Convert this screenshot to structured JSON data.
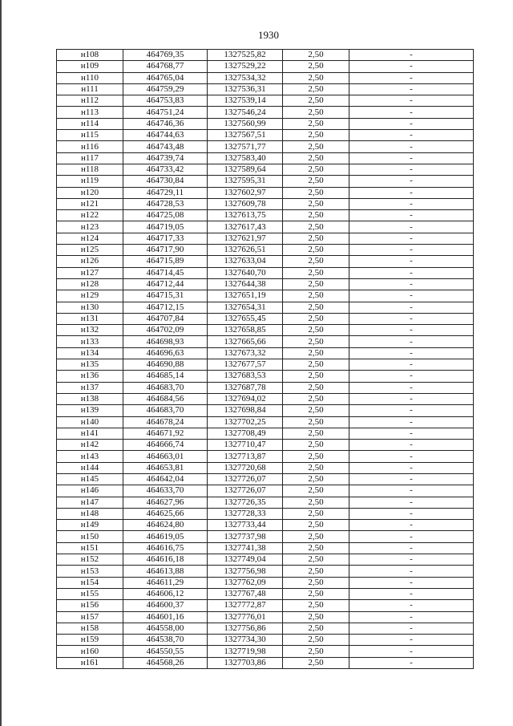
{
  "page_number": "1930",
  "rows": [
    [
      "н108",
      "464769,35",
      "1327525,82",
      "2,50",
      "-"
    ],
    [
      "н109",
      "464768,77",
      "1327529,22",
      "2,50",
      "-"
    ],
    [
      "н110",
      "464765,04",
      "1327534,32",
      "2,50",
      "-"
    ],
    [
      "н111",
      "464759,29",
      "1327536,31",
      "2,50",
      "-"
    ],
    [
      "н112",
      "464753,83",
      "1327539,14",
      "2,50",
      "-"
    ],
    [
      "н113",
      "464751,24",
      "1327546,24",
      "2,50",
      "-"
    ],
    [
      "н114",
      "464746,36",
      "1327560,99",
      "2,50",
      "-"
    ],
    [
      "н115",
      "464744,63",
      "1327567,51",
      "2,50",
      "-"
    ],
    [
      "н116",
      "464743,48",
      "1327571,77",
      "2,50",
      "-"
    ],
    [
      "н117",
      "464739,74",
      "1327583,40",
      "2,50",
      "-"
    ],
    [
      "н118",
      "464733,42",
      "1327589,64",
      "2,50",
      "-"
    ],
    [
      "н119",
      "464730,84",
      "1327595,31",
      "2,50",
      "-"
    ],
    [
      "н120",
      "464729,11",
      "1327602,97",
      "2,50",
      "-"
    ],
    [
      "н121",
      "464728,53",
      "1327609,78",
      "2,50",
      "-"
    ],
    [
      "н122",
      "464725,08",
      "1327613,75",
      "2,50",
      "-"
    ],
    [
      "н123",
      "464719,05",
      "1327617,43",
      "2,50",
      "-"
    ],
    [
      "н124",
      "464717,33",
      "1327621,97",
      "2,50",
      "-"
    ],
    [
      "н125",
      "464717,90",
      "1327626,51",
      "2,50",
      "-"
    ],
    [
      "н126",
      "464715,89",
      "1327633,04",
      "2,50",
      "-"
    ],
    [
      "н127",
      "464714,45",
      "1327640,70",
      "2,50",
      "-"
    ],
    [
      "н128",
      "464712,44",
      "1327644,38",
      "2,50",
      "-"
    ],
    [
      "н129",
      "464715,31",
      "1327651,19",
      "2,50",
      "-"
    ],
    [
      "н130",
      "464712,15",
      "1327654,31",
      "2,50",
      "-"
    ],
    [
      "н131",
      "464707,84",
      "1327655,45",
      "2,50",
      "-"
    ],
    [
      "н132",
      "464702,09",
      "1327658,85",
      "2,50",
      "-"
    ],
    [
      "н133",
      "464698,93",
      "1327665,66",
      "2,50",
      "-"
    ],
    [
      "н134",
      "464696,63",
      "1327673,32",
      "2,50",
      "-"
    ],
    [
      "н135",
      "464690,88",
      "1327677,57",
      "2,50",
      "-"
    ],
    [
      "н136",
      "464685,14",
      "1327683,53",
      "2,50",
      "-"
    ],
    [
      "н137",
      "464683,70",
      "1327687,78",
      "2,50",
      "-"
    ],
    [
      "н138",
      "464684,56",
      "1327694,02",
      "2,50",
      "-"
    ],
    [
      "н139",
      "464683,70",
      "1327698,84",
      "2,50",
      "-"
    ],
    [
      "н140",
      "464678,24",
      "1327702,25",
      "2,50",
      "-"
    ],
    [
      "н141",
      "464671,92",
      "1327708,49",
      "2,50",
      "-"
    ],
    [
      "н142",
      "464666,74",
      "1327710,47",
      "2,50",
      "-"
    ],
    [
      "н143",
      "464663,01",
      "1327713,87",
      "2,50",
      "-"
    ],
    [
      "н144",
      "464653,81",
      "1327720,68",
      "2,50",
      "-"
    ],
    [
      "н145",
      "464642,04",
      "1327726,07",
      "2,50",
      "-"
    ],
    [
      "н146",
      "464633,70",
      "1327726,07",
      "2,50",
      "-"
    ],
    [
      "н147",
      "464627,96",
      "1327726,35",
      "2,50",
      "-"
    ],
    [
      "н148",
      "464625,66",
      "1327728,33",
      "2,50",
      "-"
    ],
    [
      "н149",
      "464624,80",
      "1327733,44",
      "2,50",
      "-"
    ],
    [
      "н150",
      "464619,05",
      "1327737,98",
      "2,50",
      "-"
    ],
    [
      "н151",
      "464616,75",
      "1327741,38",
      "2,50",
      "-"
    ],
    [
      "н152",
      "464616,18",
      "1327749,04",
      "2,50",
      "-"
    ],
    [
      "н153",
      "464613,88",
      "1327756,98",
      "2,50",
      "-"
    ],
    [
      "н154",
      "464611,29",
      "1327762,09",
      "2,50",
      "-"
    ],
    [
      "н155",
      "464606,12",
      "1327767,48",
      "2,50",
      "-"
    ],
    [
      "н156",
      "464600,37",
      "1327772,87",
      "2,50",
      "-"
    ],
    [
      "н157",
      "464601,16",
      "1327776,01",
      "2,50",
      "-"
    ],
    [
      "н158",
      "464558,00",
      "1327756,86",
      "2,50",
      "-"
    ],
    [
      "н159",
      "464538,70",
      "1327734,30",
      "2,50",
      "-"
    ],
    [
      "н160",
      "464550,55",
      "1327719,98",
      "2,50",
      "-"
    ],
    [
      "н161",
      "464568,26",
      "1327703,86",
      "2,50",
      "-"
    ]
  ]
}
